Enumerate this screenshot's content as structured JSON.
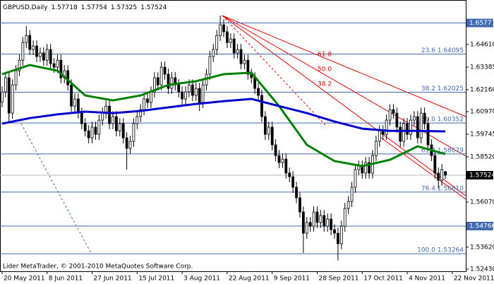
{
  "chart_data": {
    "type": "candlestick",
    "title": "GBPUSD,Daily",
    "header_values": [
      1.57718,
      1.57754,
      1.57325,
      1.57524
    ],
    "footer": "Lider MetaTrader, © 2001-2010 MetaQuotes Software Corp.",
    "up_color": "#ffffff",
    "down_color": "#000000",
    "open": [
      1.615,
      1.6204,
      1.6281,
      1.6089,
      1.6242,
      1.6319,
      1.6376,
      1.6472,
      1.651,
      1.6434,
      1.6453,
      1.6396,
      1.6415,
      1.6376,
      1.6434,
      1.6357,
      1.6338,
      1.6376,
      1.6281,
      1.6319,
      1.6242,
      1.6127,
      1.6166,
      1.6089,
      1.6032,
      1.5993,
      1.5955,
      1.6013,
      1.5974,
      1.6051,
      1.6089,
      1.6127,
      1.6032,
      1.607,
      1.5993,
      1.6032,
      1.5955,
      1.5898,
      1.5936,
      1.6032,
      1.607,
      1.6108,
      1.6166,
      1.6147,
      1.6204,
      1.6281,
      1.6242,
      1.6338,
      1.63,
      1.6223,
      1.6281,
      1.6242,
      1.6204,
      1.6166,
      1.6204,
      1.6242,
      1.6185,
      1.6223,
      1.6147,
      1.6242,
      1.63,
      1.6396,
      1.6434,
      1.651,
      1.6568,
      1.653,
      1.6472,
      1.6491,
      1.6415,
      1.6434,
      1.6357,
      1.6376,
      1.63,
      1.6281,
      1.6223,
      1.6185,
      1.607,
      1.5974,
      1.6013,
      1.5917,
      1.5859,
      1.5821,
      1.584,
      1.5764,
      1.5744,
      1.5687,
      1.563,
      1.5553,
      1.5438,
      1.5496,
      1.5476,
      1.5553,
      1.5496,
      1.5534,
      1.5476,
      1.5515,
      1.5457,
      1.5438,
      1.5381,
      1.5476,
      1.5572,
      1.561,
      1.5687,
      1.5783,
      1.5802,
      1.5764,
      1.5821,
      1.5764,
      1.5859,
      1.5936,
      1.5993,
      1.5974,
      1.6051,
      1.6108,
      1.6089,
      1.6013,
      1.5936,
      1.6032,
      1.5974,
      1.6051,
      1.607,
      1.5955,
      1.6089,
      1.6032,
      1.5917,
      1.5859,
      1.5764,
      1.5725,
      1.57718
    ],
    "high": [
      1.6234,
      1.6311,
      1.6311,
      1.6272,
      1.6349,
      1.6406,
      1.6502,
      1.656,
      1.654,
      1.6483,
      1.6483,
      1.6445,
      1.6445,
      1.6464,
      1.6464,
      1.6387,
      1.6406,
      1.6406,
      1.6349,
      1.6349,
      1.6272,
      1.6196,
      1.6196,
      1.6119,
      1.6062,
      1.6023,
      1.6043,
      1.6043,
      1.6081,
      1.6119,
      1.6157,
      1.6157,
      1.61,
      1.61,
      1.6062,
      1.6062,
      1.5985,
      1.5966,
      1.6062,
      1.61,
      1.6138,
      1.6196,
      1.6196,
      1.6234,
      1.6311,
      1.6311,
      1.6368,
      1.6368,
      1.633,
      1.6311,
      1.6311,
      1.6272,
      1.6234,
      1.6234,
      1.6272,
      1.6272,
      1.6253,
      1.6253,
      1.6272,
      1.633,
      1.6426,
      1.6464,
      1.654,
      1.6618,
      1.6598,
      1.656,
      1.6521,
      1.6521,
      1.6464,
      1.6464,
      1.6406,
      1.6406,
      1.633,
      1.6311,
      1.6253,
      1.6215,
      1.61,
      1.6043,
      1.6043,
      1.5947,
      1.5889,
      1.587,
      1.587,
      1.5794,
      1.5774,
      1.5717,
      1.566,
      1.5583,
      1.5526,
      1.5526,
      1.5583,
      1.5583,
      1.5564,
      1.5564,
      1.5545,
      1.5545,
      1.5487,
      1.5468,
      1.5506,
      1.5602,
      1.564,
      1.5717,
      1.5813,
      1.5832,
      1.5832,
      1.5851,
      1.5851,
      1.5889,
      1.5966,
      1.6023,
      1.6023,
      1.6081,
      1.6138,
      1.6138,
      1.6119,
      1.6043,
      1.6062,
      1.6062,
      1.6081,
      1.61,
      1.61,
      1.6119,
      1.6119,
      1.6062,
      1.5947,
      1.5889,
      1.5794,
      1.5813,
      1.57754
    ],
    "low": [
      1.612,
      1.6174,
      1.604,
      1.6059,
      1.6212,
      1.6289,
      1.6346,
      1.6442,
      1.6404,
      1.6404,
      1.6366,
      1.6366,
      1.6346,
      1.6346,
      1.6327,
      1.6308,
      1.6308,
      1.6251,
      1.6251,
      1.6212,
      1.6097,
      1.6097,
      1.6059,
      1.6002,
      1.5963,
      1.5925,
      1.5925,
      1.5944,
      1.5944,
      1.6021,
      1.6059,
      1.6002,
      1.6002,
      1.5963,
      1.5963,
      1.5925,
      1.5783,
      1.5868,
      1.5906,
      1.6002,
      1.604,
      1.6078,
      1.6117,
      1.6117,
      1.6174,
      1.6212,
      1.6212,
      1.627,
      1.6193,
      1.6193,
      1.6212,
      1.6174,
      1.6136,
      1.6136,
      1.6174,
      1.6155,
      1.6155,
      1.61,
      1.6117,
      1.6212,
      1.627,
      1.6366,
      1.6404,
      1.648,
      1.65,
      1.6442,
      1.6442,
      1.6385,
      1.6385,
      1.6327,
      1.6327,
      1.627,
      1.6251,
      1.6193,
      1.6155,
      1.604,
      1.5944,
      1.5944,
      1.5887,
      1.5829,
      1.5791,
      1.5791,
      1.5734,
      1.5714,
      1.5657,
      1.56,
      1.5523,
      1.5331,
      1.5408,
      1.5446,
      1.5446,
      1.5466,
      1.5466,
      1.5446,
      1.5446,
      1.5427,
      1.5408,
      1.529,
      1.5351,
      1.5446,
      1.5542,
      1.558,
      1.5657,
      1.5753,
      1.5734,
      1.5734,
      1.5734,
      1.5734,
      1.5829,
      1.5906,
      1.5944,
      1.5944,
      1.6021,
      1.6059,
      1.5983,
      1.5906,
      1.5906,
      1.5944,
      1.5944,
      1.6021,
      1.5925,
      1.5925,
      1.6002,
      1.5887,
      1.5829,
      1.5734,
      1.568,
      1.5695,
      1.57325
    ],
    "close": [
      1.6204,
      1.6281,
      1.6089,
      1.6242,
      1.6319,
      1.6376,
      1.6472,
      1.651,
      1.6434,
      1.6453,
      1.6396,
      1.6415,
      1.6376,
      1.6434,
      1.6357,
      1.6338,
      1.6376,
      1.6281,
      1.6319,
      1.6242,
      1.6127,
      1.6166,
      1.6089,
      1.6032,
      1.5993,
      1.5955,
      1.6013,
      1.5974,
      1.6051,
      1.6089,
      1.6127,
      1.6032,
      1.607,
      1.5993,
      1.6032,
      1.5955,
      1.5898,
      1.5936,
      1.6032,
      1.607,
      1.6108,
      1.6166,
      1.6147,
      1.6204,
      1.6281,
      1.6242,
      1.6338,
      1.63,
      1.6223,
      1.6281,
      1.6242,
      1.6204,
      1.6166,
      1.6204,
      1.6242,
      1.6185,
      1.6223,
      1.6147,
      1.6242,
      1.63,
      1.6396,
      1.6434,
      1.651,
      1.6568,
      1.653,
      1.6472,
      1.6491,
      1.6415,
      1.6434,
      1.6357,
      1.6376,
      1.63,
      1.6281,
      1.6223,
      1.6185,
      1.607,
      1.5974,
      1.6013,
      1.5917,
      1.5859,
      1.5821,
      1.584,
      1.5764,
      1.5744,
      1.5687,
      1.563,
      1.5553,
      1.5438,
      1.5496,
      1.5476,
      1.5553,
      1.5496,
      1.5534,
      1.5476,
      1.5515,
      1.5457,
      1.5438,
      1.5381,
      1.5476,
      1.5572,
      1.561,
      1.5687,
      1.5783,
      1.5802,
      1.5764,
      1.5821,
      1.5764,
      1.5859,
      1.5936,
      1.5993,
      1.5974,
      1.6051,
      1.6108,
      1.6089,
      1.6013,
      1.5936,
      1.6032,
      1.5974,
      1.6051,
      1.607,
      1.5955,
      1.6089,
      1.6032,
      1.5917,
      1.5859,
      1.5764,
      1.5725,
      1.5783,
      1.57524
    ],
    "series": [
      {
        "color": "#008000",
        "x": [
          0,
          8,
          16,
          24,
          32,
          40,
          48,
          56,
          64,
          72,
          80,
          88,
          96,
          104,
          112,
          120,
          128
        ],
        "values": [
          1.63,
          1.635,
          1.6319,
          1.6185,
          1.6158,
          1.6185,
          1.6242,
          1.6262,
          1.63,
          1.6308,
          1.6127,
          1.5917,
          1.5829,
          1.5802,
          1.5836,
          1.5909,
          1.5867
        ]
      },
      {
        "color": "#0000cc",
        "x": [
          0,
          8,
          16,
          24,
          32,
          40,
          48,
          56,
          64,
          72,
          80,
          88,
          96,
          104,
          112,
          120,
          128
        ],
        "values": [
          1.6032,
          1.6062,
          1.6082,
          1.6097,
          1.6089,
          1.6101,
          1.612,
          1.6139,
          1.6154,
          1.6166,
          1.6127,
          1.6089,
          1.6043,
          1.6005,
          1.5993,
          1.5993,
          1.599
        ]
      }
    ],
    "xlim": [
      -0.6,
      133.9
    ],
    "xticks": [
      {
        "value": 0,
        "label": "20 May 2011"
      },
      {
        "value": 13,
        "label": "8 Jun 2011"
      },
      {
        "value": 26,
        "label": "27 Jun 2011"
      },
      {
        "value": 39,
        "label": "15 Jul 2011"
      },
      {
        "value": 52,
        "label": "3 Aug 2011"
      },
      {
        "value": 65,
        "label": "22 Aug 2011"
      },
      {
        "value": 78,
        "label": "9 Sep 2011"
      },
      {
        "value": 91,
        "label": "28 Sep 2011"
      },
      {
        "value": 104,
        "label": "17 Oct 2011"
      },
      {
        "value": 117,
        "label": "4 Nov 2011"
      },
      {
        "value": 130,
        "label": "22 Nov 2011"
      }
    ],
    "ylim": [
      1.52315,
      1.67023
    ],
    "yticks": [
      {
        "value": 1.6461,
        "label": "1.64610"
      },
      {
        "value": 1.63385,
        "label": "1.63385"
      },
      {
        "value": 1.6216,
        "label": "1.62160"
      },
      {
        "value": 1.6097,
        "label": "1.60970"
      },
      {
        "value": 1.59745,
        "label": "1.59745"
      },
      {
        "value": 1.5852,
        "label": "1.58520"
      },
      {
        "value": 1.5607,
        "label": "1.56070"
      },
      {
        "value": 1.5362,
        "label": "1.53620"
      },
      {
        "value": 1.5243,
        "label": "1.52430"
      }
    ],
    "fibo_levels": [
      {
        "value": 1.64095,
        "label": "23.6 1.64095"
      },
      {
        "value": 1.62025,
        "label": "38.2 1.62025"
      },
      {
        "value": 1.60352,
        "label": "50.0 1.60352"
      },
      {
        "value": 1.58679,
        "label": "61.8 1.58679"
      },
      {
        "value": 1.5661,
        "label": "76.4 1.56610"
      },
      {
        "value": 1.53264,
        "label": "100.0 1.53264"
      }
    ],
    "fibo_fan": [
      "61.8",
      "50.0",
      "38.2"
    ],
    "price_boxes": [
      {
        "value": 1.65777,
        "label": "1.65777",
        "color": "#4169b0"
      },
      {
        "value": 1.54766,
        "label": "1.54766",
        "color": "#4169b0"
      },
      {
        "value": 1.57524,
        "label": "1.57524",
        "color": "#000000"
      }
    ]
  }
}
